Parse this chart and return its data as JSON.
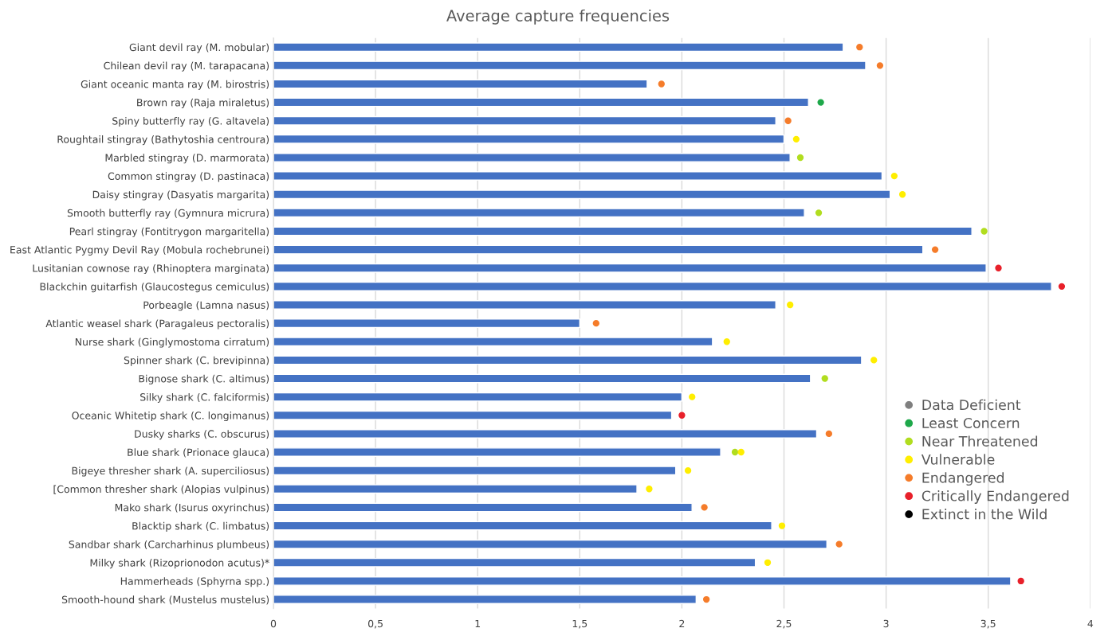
{
  "chart_data": {
    "type": "bar",
    "orientation": "horizontal",
    "title": "Average capture frequencies",
    "categories": [
      "Giant devil ray (M. mobular)",
      "Chilean devil ray (M. tarapacana)",
      "Giant oceanic manta ray (M. birostris)",
      "Brown ray (Raja miraletus)",
      "Spiny butterfly ray (G. altavela)",
      "Roughtail stingray (Bathytoshia centroura)",
      "Marbled stingray (D. marmorata)",
      "Common stingray (D. pastinaca)",
      "Daisy stingray (Dasyatis margarita)",
      "Smooth butterfly ray (Gymnura micrura)",
      "Pearl stingray (Fontitrygon margaritella)",
      "East Atlantic Pygmy Devil Ray (Mobula rochebrunei)",
      "Lusitanian cownose ray (Rhinoptera marginata)",
      "Blackchin guitarfish (Glaucostegus cemiculus)",
      "Porbeagle (Lamna nasus)",
      "Atlantic weasel shark (Paragaleus pectoralis)",
      "Nurse shark (Ginglymostoma cirratum)",
      "Spinner shark (C. brevipinna)",
      "Bignose shark (C. altimus)",
      "Silky shark (C. falciformis)",
      "Oceanic Whitetip shark (C. longimanus)",
      "Dusky sharks (C. obscurus)",
      "Blue shark (Prionace glauca)",
      "Bigeye thresher shark (A. superciliosus)",
      "[Common thresher shark (Alopias vulpinus)",
      "Mako shark (Isurus oxyrinchus)",
      "Blacktip shark (C. limbatus)",
      "Sandbar shark (Carcharhinus plumbeus)",
      "Milky shark (Rizoprionodon acutus)*",
      "Hammerheads (Sphyrna spp.)",
      "Smooth-hound shark (Mustelus mustelus)"
    ],
    "series": [
      {
        "color": "#4472c4",
        "values": [
          2.79,
          2.9,
          1.83,
          2.62,
          2.46,
          2.5,
          2.53,
          2.98,
          3.02,
          2.6,
          3.42,
          3.18,
          3.49,
          3.81,
          2.46,
          1.5,
          2.15,
          2.88,
          2.63,
          2.0,
          1.95,
          2.66,
          2.19,
          1.97,
          1.78,
          2.05,
          2.44,
          2.71,
          2.36,
          3.61,
          2.07
        ]
      },
      {
        "type": "scatter",
        "name": "Data Deficient",
        "color": "#7f7f7f",
        "values": [
          null,
          null,
          null,
          null,
          null,
          null,
          null,
          null,
          null,
          null,
          null,
          null,
          null,
          null,
          null,
          null,
          null,
          null,
          null,
          null,
          null,
          null,
          null,
          null,
          null,
          null,
          null,
          null,
          null,
          null,
          null
        ]
      },
      {
        "type": "scatter",
        "name": "Least Concern",
        "color": "#1ea84a",
        "values": [
          null,
          null,
          null,
          2.68,
          null,
          null,
          null,
          null,
          null,
          null,
          null,
          null,
          null,
          null,
          null,
          null,
          null,
          null,
          null,
          null,
          null,
          null,
          null,
          null,
          null,
          null,
          null,
          null,
          null,
          null,
          null
        ]
      },
      {
        "type": "scatter",
        "name": "Near Threatened",
        "color": "#b1dd1f",
        "values": [
          null,
          null,
          null,
          null,
          null,
          null,
          2.58,
          null,
          null,
          2.67,
          3.48,
          null,
          null,
          null,
          null,
          null,
          null,
          null,
          2.7,
          null,
          null,
          null,
          2.26,
          null,
          null,
          null,
          null,
          null,
          null,
          null,
          null
        ]
      },
      {
        "type": "scatter",
        "name": "Vulnerable",
        "color": "#ffee00",
        "values": [
          null,
          null,
          null,
          null,
          null,
          2.56,
          null,
          3.04,
          3.08,
          null,
          null,
          null,
          null,
          null,
          2.53,
          null,
          2.22,
          2.94,
          null,
          2.05,
          null,
          null,
          2.29,
          2.03,
          1.84,
          null,
          2.49,
          null,
          2.42,
          null,
          null
        ]
      },
      {
        "type": "scatter",
        "name": "Endangered",
        "color": "#f57c2a",
        "values": [
          2.87,
          2.97,
          1.9,
          null,
          2.52,
          null,
          null,
          null,
          null,
          null,
          null,
          3.24,
          null,
          null,
          null,
          1.58,
          null,
          null,
          null,
          null,
          null,
          2.72,
          null,
          null,
          null,
          2.11,
          null,
          2.77,
          null,
          null,
          2.12
        ]
      },
      {
        "type": "scatter",
        "name": "Critically Endangered",
        "color": "#e8202a",
        "values": [
          null,
          null,
          null,
          null,
          null,
          null,
          null,
          null,
          null,
          null,
          null,
          null,
          3.55,
          3.86,
          null,
          null,
          null,
          null,
          null,
          null,
          2.0,
          null,
          null,
          null,
          null,
          null,
          null,
          null,
          null,
          3.66,
          null
        ]
      },
      {
        "type": "scatter",
        "name": "Extinct in the Wild",
        "color": "#000000",
        "values": [
          null,
          null,
          null,
          null,
          null,
          null,
          null,
          null,
          null,
          null,
          null,
          null,
          null,
          null,
          null,
          null,
          null,
          null,
          null,
          null,
          null,
          null,
          null,
          null,
          null,
          null,
          null,
          null,
          null,
          null,
          null
        ]
      }
    ],
    "xlim": [
      0,
      4
    ],
    "xticks": [
      0,
      {
        "value": 0.5,
        "label": "0,5"
      },
      1,
      {
        "value": 1.5,
        "label": "1,5"
      },
      2,
      {
        "value": 2.5,
        "label": "2,5"
      },
      3,
      {
        "value": 3.5,
        "label": "3,5"
      },
      4
    ],
    "grid": "x",
    "legend": "bottom right",
    "marker": "circle"
  }
}
